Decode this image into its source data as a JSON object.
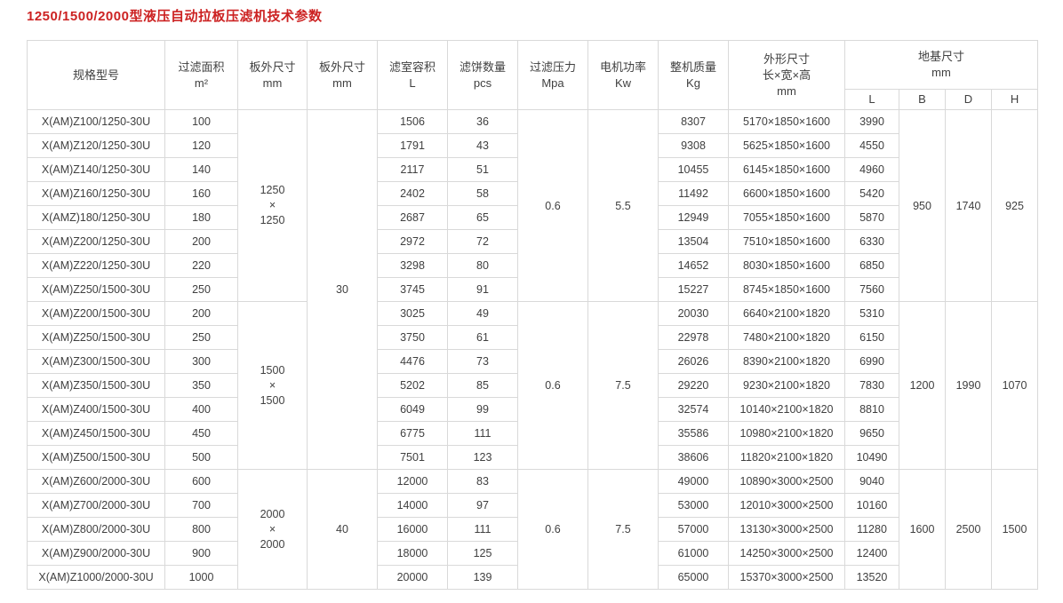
{
  "title": "1250/1500/2000型液压自动拉板压滤机技术参数",
  "colors": {
    "title_red": "#cc2222",
    "table_border": "#d9d9d9",
    "text": "#404040"
  },
  "table": {
    "header": {
      "model": "规格型号",
      "area": "过滤面积\nm²",
      "plate_outer": "板外尺寸\nmm",
      "plate_outer2": "板外尺寸\nmm",
      "volume": "滤室容积\nL",
      "cakes": "滤饼数量\npcs",
      "pressure": "过滤压力\nMpa",
      "power": "电机功率\nKw",
      "weight": "整机质量\nKg",
      "dims": "外形尺寸\n长×宽×高\nmm",
      "foundation": "地基尺寸\nmm",
      "foundation_cols": [
        "L",
        "B",
        "D",
        "H"
      ]
    },
    "groups": [
      {
        "plate_size": "1250\n×\n1250",
        "thickness": "30",
        "thickness_rowspan": 15,
        "pressure": "0.6",
        "power": "5.5",
        "foundation": {
          "b": "950",
          "d": "1740",
          "h": "925"
        },
        "rows": [
          {
            "model": "X(AM)Z100/1250-30U",
            "area": "100",
            "volume": "1506",
            "cakes": "36",
            "weight": "8307",
            "dims": "5170×1850×1600",
            "l": "3990"
          },
          {
            "model": "X(AM)Z120/1250-30U",
            "area": "120",
            "volume": "1791",
            "cakes": "43",
            "weight": "9308",
            "dims": "5625×1850×1600",
            "l": "4550"
          },
          {
            "model": "X(AM)Z140/1250-30U",
            "area": "140",
            "volume": "2117",
            "cakes": "51",
            "weight": "10455",
            "dims": "6145×1850×1600",
            "l": "4960"
          },
          {
            "model": "X(AM)Z160/1250-30U",
            "area": "160",
            "volume": "2402",
            "cakes": "58",
            "weight": "11492",
            "dims": "6600×1850×1600",
            "l": "5420"
          },
          {
            "model": "X(AMZ)180/1250-30U",
            "area": "180",
            "volume": "2687",
            "cakes": "65",
            "weight": "12949",
            "dims": "7055×1850×1600",
            "l": "5870"
          },
          {
            "model": "X(AM)Z200/1250-30U",
            "area": "200",
            "volume": "2972",
            "cakes": "72",
            "weight": "13504",
            "dims": "7510×1850×1600",
            "l": "6330"
          },
          {
            "model": "X(AM)Z220/1250-30U",
            "area": "220",
            "volume": "3298",
            "cakes": "80",
            "weight": "14652",
            "dims": "8030×1850×1600",
            "l": "6850"
          },
          {
            "model": "X(AM)Z250/1500-30U",
            "area": "250",
            "volume": "3745",
            "cakes": "91",
            "weight": "15227",
            "dims": "8745×1850×1600",
            "l": "7560"
          }
        ]
      },
      {
        "plate_size": "1500\n×\n1500",
        "thickness": null,
        "thickness_rowspan": 0,
        "pressure": "0.6",
        "power": "7.5",
        "foundation": {
          "b": "1200",
          "d": "1990",
          "h": "1070"
        },
        "rows": [
          {
            "model": "X(AM)Z200/1500-30U",
            "area": "200",
            "volume": "3025",
            "cakes": "49",
            "weight": "20030",
            "dims": "6640×2100×1820",
            "l": "5310"
          },
          {
            "model": "X(AM)Z250/1500-30U",
            "area": "250",
            "volume": "3750",
            "cakes": "61",
            "weight": "22978",
            "dims": "7480×2100×1820",
            "l": "6150"
          },
          {
            "model": "X(AM)Z300/1500-30U",
            "area": "300",
            "volume": "4476",
            "cakes": "73",
            "weight": "26026",
            "dims": "8390×2100×1820",
            "l": "6990"
          },
          {
            "model": "X(AM)Z350/1500-30U",
            "area": "350",
            "volume": "5202",
            "cakes": "85",
            "weight": "29220",
            "dims": "9230×2100×1820",
            "l": "7830"
          },
          {
            "model": "X(AM)Z400/1500-30U",
            "area": "400",
            "volume": "6049",
            "cakes": "99",
            "weight": "32574",
            "dims": "10140×2100×1820",
            "l": "8810"
          },
          {
            "model": "X(AM)Z450/1500-30U",
            "area": "450",
            "volume": "6775",
            "cakes": "111",
            "weight": "35586",
            "dims": "10980×2100×1820",
            "l": "9650"
          },
          {
            "model": "X(AM)Z500/1500-30U",
            "area": "500",
            "volume": "7501",
            "cakes": "123",
            "weight": "38606",
            "dims": "11820×2100×1820",
            "l": "10490"
          }
        ]
      },
      {
        "plate_size": "2000\n×\n2000",
        "thickness": "40",
        "thickness_rowspan": 5,
        "pressure": "0.6",
        "power": "7.5",
        "foundation": {
          "b": "1600",
          "d": "2500",
          "h": "1500"
        },
        "rows": [
          {
            "model": "X(AM)Z600/2000-30U",
            "area": "600",
            "volume": "12000",
            "cakes": "83",
            "weight": "49000",
            "dims": "10890×3000×2500",
            "l": "9040"
          },
          {
            "model": "X(AM)Z700/2000-30U",
            "area": "700",
            "volume": "14000",
            "cakes": "97",
            "weight": "53000",
            "dims": "12010×3000×2500",
            "l": "10160"
          },
          {
            "model": "X(AM)Z800/2000-30U",
            "area": "800",
            "volume": "16000",
            "cakes": "111",
            "weight": "57000",
            "dims": "13130×3000×2500",
            "l": "11280"
          },
          {
            "model": "X(AM)Z900/2000-30U",
            "area": "900",
            "volume": "18000",
            "cakes": "125",
            "weight": "61000",
            "dims": "14250×3000×2500",
            "l": "12400"
          },
          {
            "model": "X(AM)Z1000/2000-30U",
            "area": "1000",
            "volume": "20000",
            "cakes": "139",
            "weight": "65000",
            "dims": "15370×3000×2500",
            "l": "13520"
          }
        ]
      }
    ]
  }
}
